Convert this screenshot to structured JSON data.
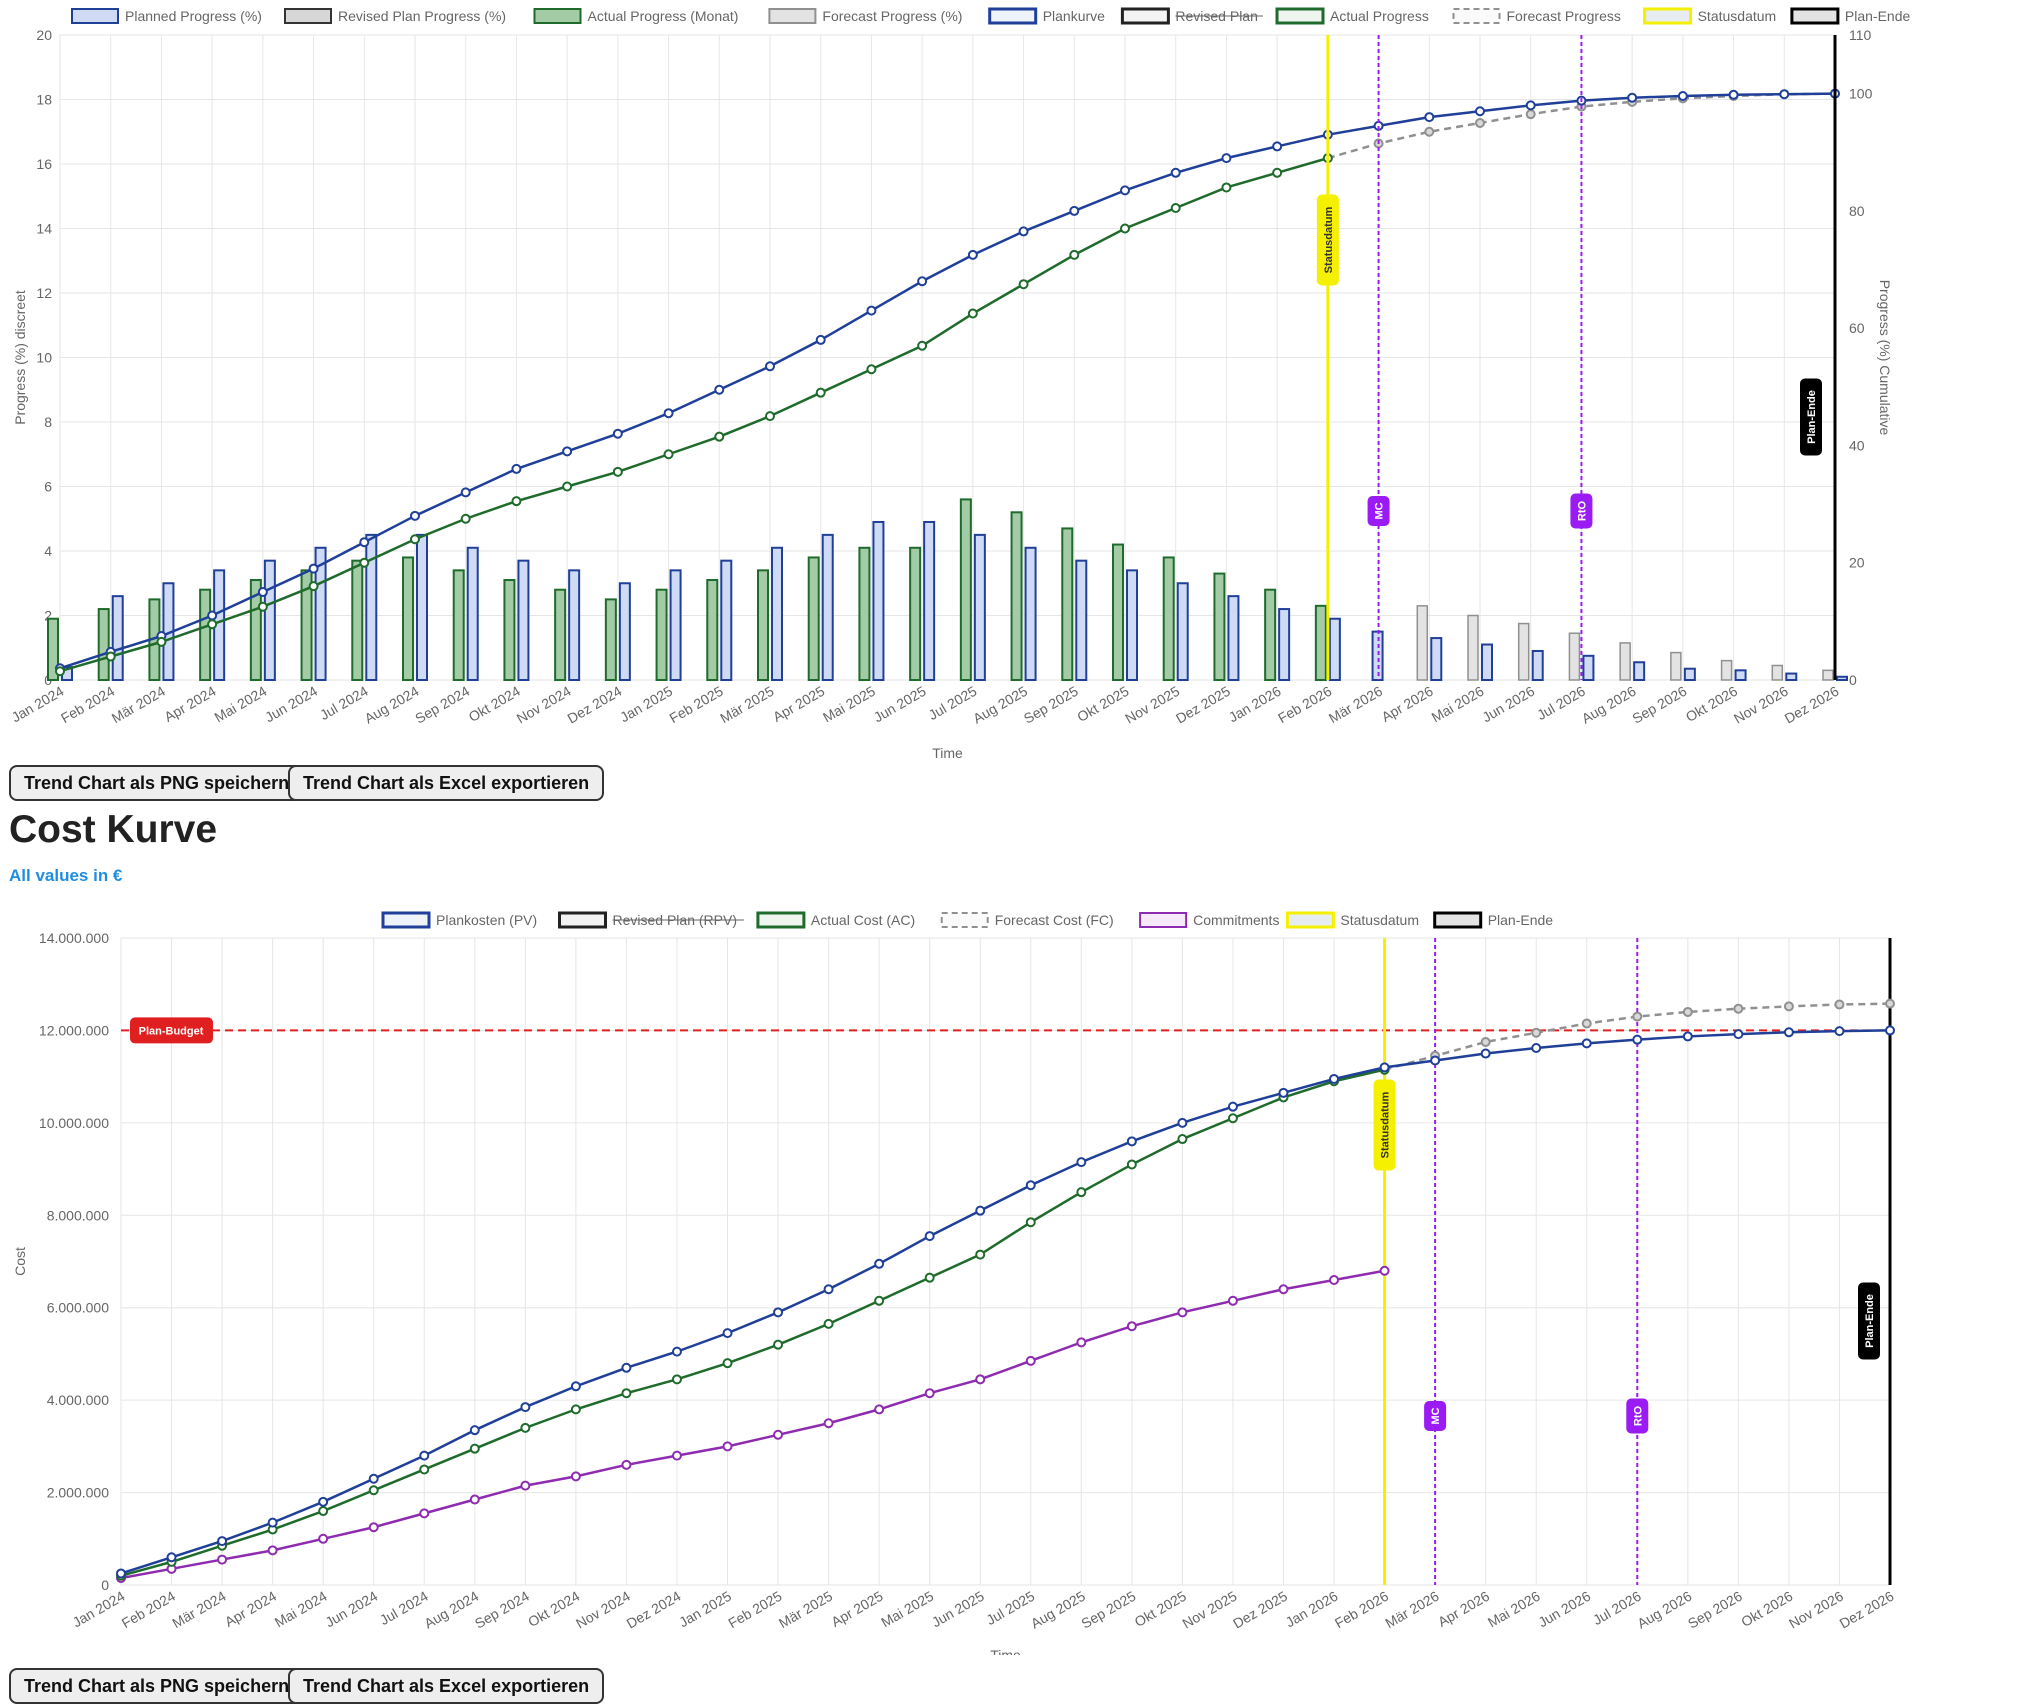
{
  "sections": {
    "cost_heading": "Cost Kurve",
    "cost_subtitle": "All values in €"
  },
  "buttons": {
    "png": "Trend Chart als PNG speichern",
    "excel": "Trend Chart als Excel exportieren"
  },
  "colors": {
    "plan": "#1f3f99",
    "plan_fill": "#cfdbf4",
    "actual": "#1e6b2c",
    "actual_fill": "#a2cba6",
    "forecast": "#909090",
    "forecast_fill": "#e3e3e3",
    "revised": "#333333",
    "revised_fill": "#d6d6d6",
    "commitments": "#8e2bb0",
    "status": "#f5f000",
    "milestone": "#9b1bf5",
    "budget": "#e02020",
    "grid": "#e6e6e6"
  },
  "chart_data": [
    {
      "type": "bar",
      "id": "progress",
      "legend": {
        "position": "top",
        "items": [
          {
            "label": "Planned Progress (%)",
            "style": "plan_bar"
          },
          {
            "label": "Revised Plan Progress (%)",
            "style": "revised_bar"
          },
          {
            "label": "Actual Progress (Monat)",
            "style": "actual_bar"
          },
          {
            "label": "Forecast Progress (%)",
            "style": "forecast_bar"
          },
          {
            "label": "Plankurve",
            "style": "plan_line"
          },
          {
            "label": "Revised Plan",
            "style": "revised_line",
            "strikethrough": true
          },
          {
            "label": "Actual Progress",
            "style": "actual_line"
          },
          {
            "label": "Forecast Progress",
            "style": "forecast_line"
          },
          {
            "label": "Statusdatum",
            "style": "status"
          },
          {
            "label": "Plan-Ende",
            "style": "planend"
          }
        ]
      },
      "xlabel": "Time",
      "ylabel_left": "Progress (%) discreet",
      "ylabel_right": "Progress (%) Cumulative",
      "ylim_left": [
        0,
        20
      ],
      "ylim_right": [
        0,
        110
      ],
      "yticks_left": [
        "0",
        "2",
        "4",
        "6",
        "8",
        "10",
        "12",
        "14",
        "16",
        "18",
        "20"
      ],
      "yticks_right": [
        "0",
        "20",
        "40",
        "60",
        "80",
        "100",
        "110"
      ],
      "categories": [
        "Jan 2024",
        "Feb 2024",
        "Mär 2024",
        "Apr 2024",
        "Mai 2024",
        "Jun 2024",
        "Jul 2024",
        "Aug 2024",
        "Sep 2024",
        "Okt 2024",
        "Nov 2024",
        "Dez 2024",
        "Jan 2025",
        "Feb 2025",
        "Mär 2025",
        "Apr 2025",
        "Mai 2025",
        "Jun 2025",
        "Jul 2025",
        "Aug 2025",
        "Sep 2025",
        "Okt 2025",
        "Nov 2025",
        "Dez 2025",
        "Jan 2026",
        "Feb 2026",
        "Mär 2026",
        "Apr 2026",
        "Mai 2026",
        "Jun 2026",
        "Jul 2026",
        "Aug 2026",
        "Sep 2026",
        "Okt 2026",
        "Nov 2026",
        "Dez 2026"
      ],
      "series": [
        {
          "name": "Planned Progress (%)",
          "kind": "bar",
          "values": [
            0.4,
            2.6,
            3.0,
            3.4,
            3.7,
            4.1,
            4.5,
            4.5,
            4.1,
            3.7,
            3.4,
            3.0,
            3.4,
            3.7,
            4.1,
            4.5,
            4.9,
            4.9,
            4.5,
            4.1,
            3.7,
            3.4,
            3.0,
            2.6,
            2.2,
            1.9,
            1.5,
            1.3,
            1.1,
            0.9,
            0.75,
            0.55,
            0.35,
            0.3,
            0.2,
            0.1
          ]
        },
        {
          "name": "Actual Progress (Monat)",
          "kind": "bar",
          "values": [
            1.9,
            2.2,
            2.5,
            2.8,
            3.1,
            3.4,
            3.7,
            3.8,
            3.4,
            3.1,
            2.8,
            2.5,
            2.8,
            3.1,
            3.4,
            3.8,
            4.1,
            4.1,
            5.6,
            5.2,
            4.7,
            4.2,
            3.8,
            3.3,
            2.8,
            2.3,
            null,
            null,
            null,
            null,
            null,
            null,
            null,
            null,
            null,
            null
          ]
        },
        {
          "name": "Forecast Progress (%)",
          "kind": "bar",
          "values": [
            null,
            null,
            null,
            null,
            null,
            null,
            null,
            null,
            null,
            null,
            null,
            null,
            null,
            null,
            null,
            null,
            null,
            null,
            null,
            null,
            null,
            null,
            null,
            null,
            null,
            null,
            null,
            2.3,
            2.0,
            1.75,
            1.45,
            1.15,
            0.85,
            0.6,
            0.45,
            0.3
          ]
        },
        {
          "name": "Plankurve",
          "kind": "line",
          "axis": "right",
          "values": [
            2.0,
            4.8,
            7.5,
            11.0,
            15.0,
            19.0,
            23.5,
            28.0,
            32.0,
            36.0,
            39.0,
            42.0,
            45.5,
            49.5,
            53.5,
            58.0,
            63.0,
            68.0,
            72.5,
            76.5,
            80.0,
            83.5,
            86.5,
            89.0,
            91.0,
            93.0,
            94.5,
            96.0,
            97.0,
            98.0,
            98.8,
            99.3,
            99.6,
            99.8,
            99.9,
            100.0
          ]
        },
        {
          "name": "Actual Progress",
          "kind": "line",
          "axis": "right",
          "values": [
            1.5,
            4.0,
            6.5,
            9.5,
            12.5,
            16.0,
            20.0,
            24.0,
            27.5,
            30.5,
            33.0,
            35.5,
            38.5,
            41.5,
            45.0,
            49.0,
            53.0,
            57.0,
            62.5,
            67.5,
            72.5,
            77.0,
            80.5,
            84.0,
            86.5,
            89.0,
            null,
            null,
            null,
            null,
            null,
            null,
            null,
            null,
            null,
            null
          ]
        },
        {
          "name": "Forecast Progress",
          "kind": "line",
          "axis": "right",
          "values": [
            null,
            null,
            null,
            null,
            null,
            null,
            null,
            null,
            null,
            null,
            null,
            null,
            null,
            null,
            null,
            null,
            null,
            null,
            null,
            null,
            null,
            null,
            null,
            null,
            null,
            89.0,
            91.5,
            93.5,
            95.0,
            96.5,
            97.8,
            98.6,
            99.2,
            99.6,
            99.9,
            100.0
          ]
        }
      ],
      "annotations": [
        {
          "type": "vline",
          "label": "Statusdatum",
          "at": "Feb 2026",
          "style": "status"
        },
        {
          "type": "vline",
          "label": "MC",
          "at": "Mär 2026",
          "style": "milestone"
        },
        {
          "type": "vline",
          "label": "RtO",
          "at": "Jul 2026",
          "style": "milestone"
        },
        {
          "type": "vline",
          "label": "Plan-Ende",
          "at": "Dez 2026",
          "style": "planend"
        }
      ]
    },
    {
      "type": "line",
      "id": "cost",
      "legend": {
        "position": "top",
        "items": [
          {
            "label": "Plankosten (PV)",
            "style": "plan_line"
          },
          {
            "label": "Revised Plan (RPV)",
            "style": "revised_line",
            "strikethrough": true
          },
          {
            "label": "Actual Cost (AC)",
            "style": "actual_line"
          },
          {
            "label": "Forecast Cost (FC)",
            "style": "forecast_line"
          },
          {
            "label": "Commitments",
            "style": "commit_line"
          },
          {
            "label": "Statusdatum",
            "style": "status"
          },
          {
            "label": "Plan-Ende",
            "style": "planend"
          }
        ]
      },
      "xlabel": "Time",
      "ylabel": "Cost",
      "ylim": [
        0,
        14000000
      ],
      "yticks": [
        "0",
        "2.000.000",
        "4.000.000",
        "6.000.000",
        "8.000.000",
        "10.000.000",
        "12.000.000",
        "14.000.000"
      ],
      "categories": [
        "Jan 2024",
        "Feb 2024",
        "Mär 2024",
        "Apr 2024",
        "Mai 2024",
        "Jun 2024",
        "Jul 2024",
        "Aug 2024",
        "Sep 2024",
        "Okt 2024",
        "Nov 2024",
        "Dez 2024",
        "Jan 2025",
        "Feb 2025",
        "Mär 2025",
        "Apr 2025",
        "Mai 2025",
        "Jun 2025",
        "Jul 2025",
        "Aug 2025",
        "Sep 2025",
        "Okt 2025",
        "Nov 2025",
        "Dez 2025",
        "Jan 2026",
        "Feb 2026",
        "Mär 2026",
        "Apr 2026",
        "Mai 2026",
        "Jun 2026",
        "Jul 2026",
        "Aug 2026",
        "Sep 2026",
        "Okt 2026",
        "Nov 2026",
        "Dez 2026"
      ],
      "series": [
        {
          "name": "Plankosten (PV)",
          "values": [
            250000,
            600000,
            950000,
            1350000,
            1800000,
            2300000,
            2800000,
            3350000,
            3850000,
            4300000,
            4700000,
            5050000,
            5450000,
            5900000,
            6400000,
            6950000,
            7550000,
            8100000,
            8650000,
            9150000,
            9600000,
            10000000,
            10350000,
            10650000,
            10950000,
            11200000,
            11350000,
            11500000,
            11620000,
            11720000,
            11800000,
            11870000,
            11920000,
            11960000,
            11985000,
            12000000
          ]
        },
        {
          "name": "Actual Cost (AC)",
          "values": [
            200000,
            500000,
            850000,
            1200000,
            1600000,
            2050000,
            2500000,
            2950000,
            3400000,
            3800000,
            4150000,
            4450000,
            4800000,
            5200000,
            5650000,
            6150000,
            6650000,
            7150000,
            7850000,
            8500000,
            9100000,
            9650000,
            10100000,
            10550000,
            10900000,
            11150000,
            null,
            null,
            null,
            null,
            null,
            null,
            null,
            null,
            null,
            null
          ]
        },
        {
          "name": "Forecast Cost (FC)",
          "values": [
            null,
            null,
            null,
            null,
            null,
            null,
            null,
            null,
            null,
            null,
            null,
            null,
            null,
            null,
            null,
            null,
            null,
            null,
            null,
            null,
            null,
            null,
            null,
            null,
            null,
            11150000,
            11450000,
            11750000,
            11950000,
            12150000,
            12300000,
            12400000,
            12470000,
            12520000,
            12560000,
            12580000
          ]
        },
        {
          "name": "Commitments",
          "values": [
            150000,
            350000,
            550000,
            750000,
            1000000,
            1250000,
            1550000,
            1850000,
            2150000,
            2350000,
            2600000,
            2800000,
            3000000,
            3250000,
            3500000,
            3800000,
            4150000,
            4450000,
            4850000,
            5250000,
            5600000,
            5900000,
            6150000,
            6400000,
            6600000,
            6800000,
            null,
            null,
            null,
            null,
            null,
            null,
            null,
            null,
            null,
            null
          ]
        }
      ],
      "annotations": [
        {
          "type": "hline",
          "label": "Plan-Budget",
          "value": 12000000,
          "style": "budget"
        },
        {
          "type": "vline",
          "label": "Statusdatum",
          "at": "Feb 2026",
          "style": "status"
        },
        {
          "type": "vline",
          "label": "MC",
          "at": "Mär 2026",
          "style": "milestone"
        },
        {
          "type": "vline",
          "label": "RtO",
          "at": "Jul 2026",
          "style": "milestone"
        },
        {
          "type": "vline",
          "label": "Plan-Ende",
          "at": "Dez 2026",
          "style": "planend"
        }
      ]
    }
  ]
}
